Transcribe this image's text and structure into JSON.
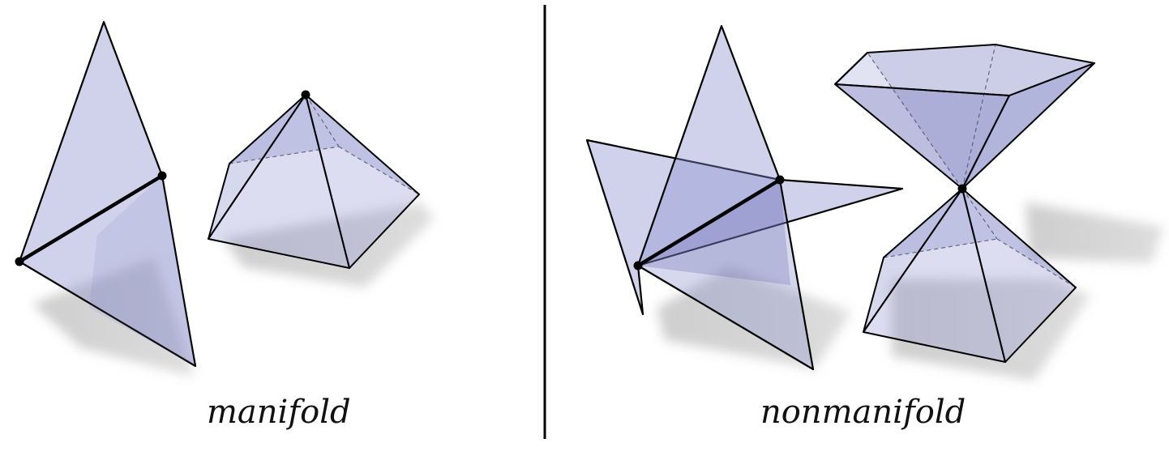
{
  "captions": {
    "left": "manifold",
    "right": "nonmanifold"
  },
  "colors": {
    "face_fill": "#8a8fcc",
    "face_dark": "#5558a8",
    "edge": "#000000",
    "shadow": "#b8b8b8"
  }
}
